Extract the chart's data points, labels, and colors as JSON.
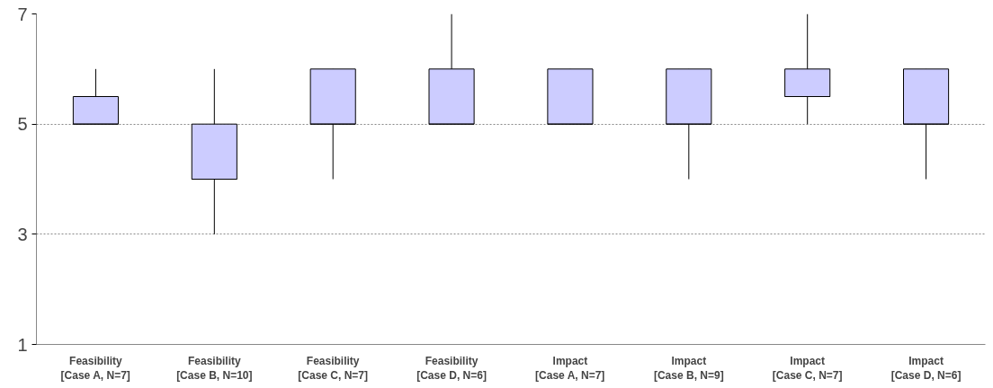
{
  "chart_data": {
    "type": "box",
    "categories": [
      "Feasibility\n[Case A, N=7]",
      "Feasibility\n[Case B, N=10]",
      "Feasibility\n[Case C, N=7]",
      "Feasibility\n[Case D, N=6]",
      "Impact\n[Case A, N=7]",
      "Impact\n[Case B, N=9]",
      "Impact\n[Case C, N=7]",
      "Impact\n[Case D, N=6]"
    ],
    "boxes": [
      {
        "low": 5,
        "q1": 5,
        "median": 5,
        "q3": 5.5,
        "high": 6
      },
      {
        "low": 3,
        "q1": 4,
        "median": 4,
        "q3": 5,
        "high": 6
      },
      {
        "low": 4,
        "q1": 5,
        "median": 5,
        "q3": 6,
        "high": 6
      },
      {
        "low": 5,
        "q1": 5,
        "median": 5,
        "q3": 6,
        "high": 7
      },
      {
        "low": 5,
        "q1": 5,
        "median": 5,
        "q3": 6,
        "high": 6
      },
      {
        "low": 4,
        "q1": 5,
        "median": 5,
        "q3": 6,
        "high": 6
      },
      {
        "low": 5,
        "q1": 5.5,
        "median": 5.5,
        "q3": 6,
        "high": 7
      },
      {
        "low": 4,
        "q1": 5,
        "median": 5,
        "q3": 6,
        "high": 6
      }
    ],
    "color": "#ccccff",
    "ylim": [
      1,
      7
    ],
    "yticks": [
      1,
      3,
      5,
      7
    ],
    "grid": "y"
  }
}
